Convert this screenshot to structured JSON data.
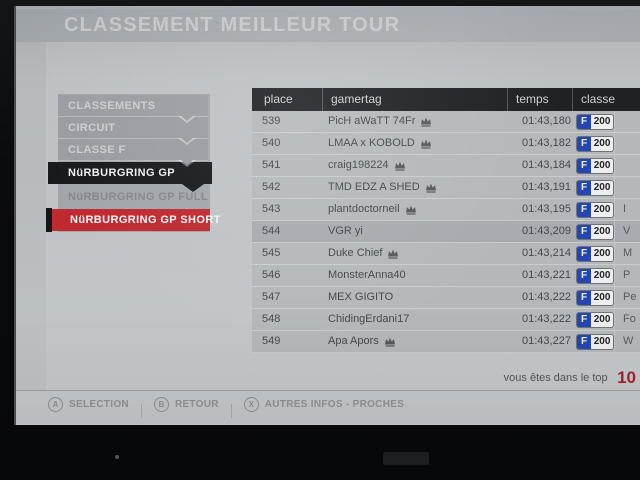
{
  "window": {
    "title": "CLASSEMENT MEILLEUR TOUR"
  },
  "sidebar": {
    "items": [
      {
        "label": "CLASSEMENTS",
        "style": "band"
      },
      {
        "label": "CIRCUIT",
        "style": "band"
      },
      {
        "label": "CLASSE F",
        "style": "band"
      },
      {
        "label": "NüRBURGRING GP",
        "style": "active-black"
      },
      {
        "label": "NüRBURGRING GP FULL",
        "style": "plain"
      },
      {
        "label": "NüRBURGRING GP SHORT",
        "style": "active-red"
      }
    ]
  },
  "table": {
    "columns": [
      "place",
      "gamertag",
      "temps",
      "classe"
    ],
    "rows": [
      {
        "place": "539",
        "gamertag": "PicH aWaTT 74Fr",
        "crown": true,
        "temps": "01:43,180",
        "classe": "F",
        "pi": "200",
        "extra": "",
        "highlight": false
      },
      {
        "place": "540",
        "gamertag": "LMAA x KOBOLD",
        "crown": true,
        "temps": "01:43,182",
        "classe": "F",
        "pi": "200",
        "extra": "",
        "highlight": false
      },
      {
        "place": "541",
        "gamertag": "craig198224",
        "crown": true,
        "temps": "01:43,184",
        "classe": "F",
        "pi": "200",
        "extra": "",
        "highlight": false
      },
      {
        "place": "542",
        "gamertag": "TMD EDZ A SHED",
        "crown": true,
        "temps": "01:43,191",
        "classe": "F",
        "pi": "200",
        "extra": "",
        "highlight": false
      },
      {
        "place": "543",
        "gamertag": "plantdoctorneil",
        "crown": true,
        "temps": "01:43,195",
        "classe": "F",
        "pi": "200",
        "extra": "I",
        "highlight": false
      },
      {
        "place": "544",
        "gamertag": "VGR yi",
        "crown": false,
        "temps": "01:43,209",
        "classe": "F",
        "pi": "200",
        "extra": "V",
        "highlight": true
      },
      {
        "place": "545",
        "gamertag": "Duke Chief",
        "crown": true,
        "temps": "01:43,214",
        "classe": "F",
        "pi": "200",
        "extra": "M",
        "highlight": false
      },
      {
        "place": "546",
        "gamertag": "MonsterAnna40",
        "crown": false,
        "temps": "01:43,221",
        "classe": "F",
        "pi": "200",
        "extra": "P",
        "highlight": false
      },
      {
        "place": "547",
        "gamertag": "MEX GIGITO",
        "crown": false,
        "temps": "01:43,222",
        "classe": "F",
        "pi": "200",
        "extra": "Pe",
        "highlight": false
      },
      {
        "place": "548",
        "gamertag": "ChidingErdani17",
        "crown": false,
        "temps": "01:43,222",
        "classe": "F",
        "pi": "200",
        "extra": "Fo",
        "highlight": false
      },
      {
        "place": "549",
        "gamertag": "Apa Apors",
        "crown": true,
        "temps": "01:43,227",
        "classe": "F",
        "pi": "200",
        "extra": "W",
        "highlight": false
      }
    ]
  },
  "footer": {
    "label": "vous êtes dans le top",
    "value": "10"
  },
  "hints": [
    {
      "button": "A",
      "label": "SELECTION"
    },
    {
      "button": "B",
      "label": "RETOUR"
    },
    {
      "button": "X",
      "label": "AUTRES INFOS - PROCHES"
    }
  ],
  "colors": {
    "accent_red": "#bf2930",
    "active_black": "#18191b",
    "badge_blue": "#2346b4",
    "footer_value_red": "#a4222a"
  }
}
